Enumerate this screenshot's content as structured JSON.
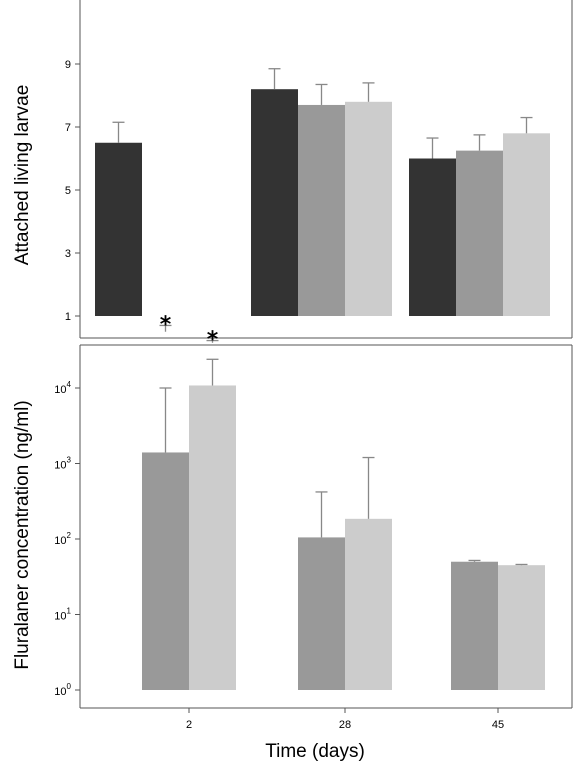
{
  "chart_data": [
    {
      "type": "bar",
      "ylabel": "Attached living larvae",
      "ylim": [
        0,
        10
      ],
      "yticks": [
        1,
        3,
        5,
        7,
        9
      ],
      "categories": [
        "2",
        "28",
        "45"
      ],
      "series": [
        {
          "color": "#333333",
          "values": [
            6.5,
            8.2,
            6.0
          ],
          "error": [
            0.65,
            0.65,
            0.65
          ]
        },
        {
          "color": "#999999",
          "values": [
            0.5,
            7.7,
            6.25
          ],
          "error": [
            0.2,
            0.65,
            0.5
          ]
        },
        {
          "color": "#cccccc",
          "values": [
            0.15,
            7.8,
            6.8
          ],
          "error": [
            0.07,
            0.6,
            0.5
          ]
        }
      ],
      "annotations": [
        {
          "text": "*",
          "category": "2",
          "series_index": 1
        },
        {
          "text": "*",
          "category": "2",
          "series_index": 2
        }
      ],
      "grid": false
    },
    {
      "type": "bar",
      "scale": "log",
      "ylabel": "Fluralaner concentration (ng/ml)",
      "xlabel": "Time (days)",
      "ylim": [
        1,
        70000
      ],
      "yticks": [
        {
          "value": 1,
          "base": "10",
          "exp": "0"
        },
        {
          "value": 10,
          "base": "10",
          "exp": "1"
        },
        {
          "value": 100,
          "base": "10",
          "exp": "2"
        },
        {
          "value": 1000,
          "base": "10",
          "exp": "3"
        },
        {
          "value": 10000,
          "base": "10",
          "exp": "4"
        }
      ],
      "categories": [
        "2",
        "28",
        "45"
      ],
      "series": [
        {
          "color": "#999999",
          "values": [
            1400,
            105,
            50
          ],
          "error_top": [
            10000,
            420,
            52
          ]
        },
        {
          "color": "#cccccc",
          "values": [
            10800,
            185,
            45
          ],
          "error_top": [
            24000,
            1200,
            46
          ]
        }
      ],
      "grid": false
    }
  ]
}
